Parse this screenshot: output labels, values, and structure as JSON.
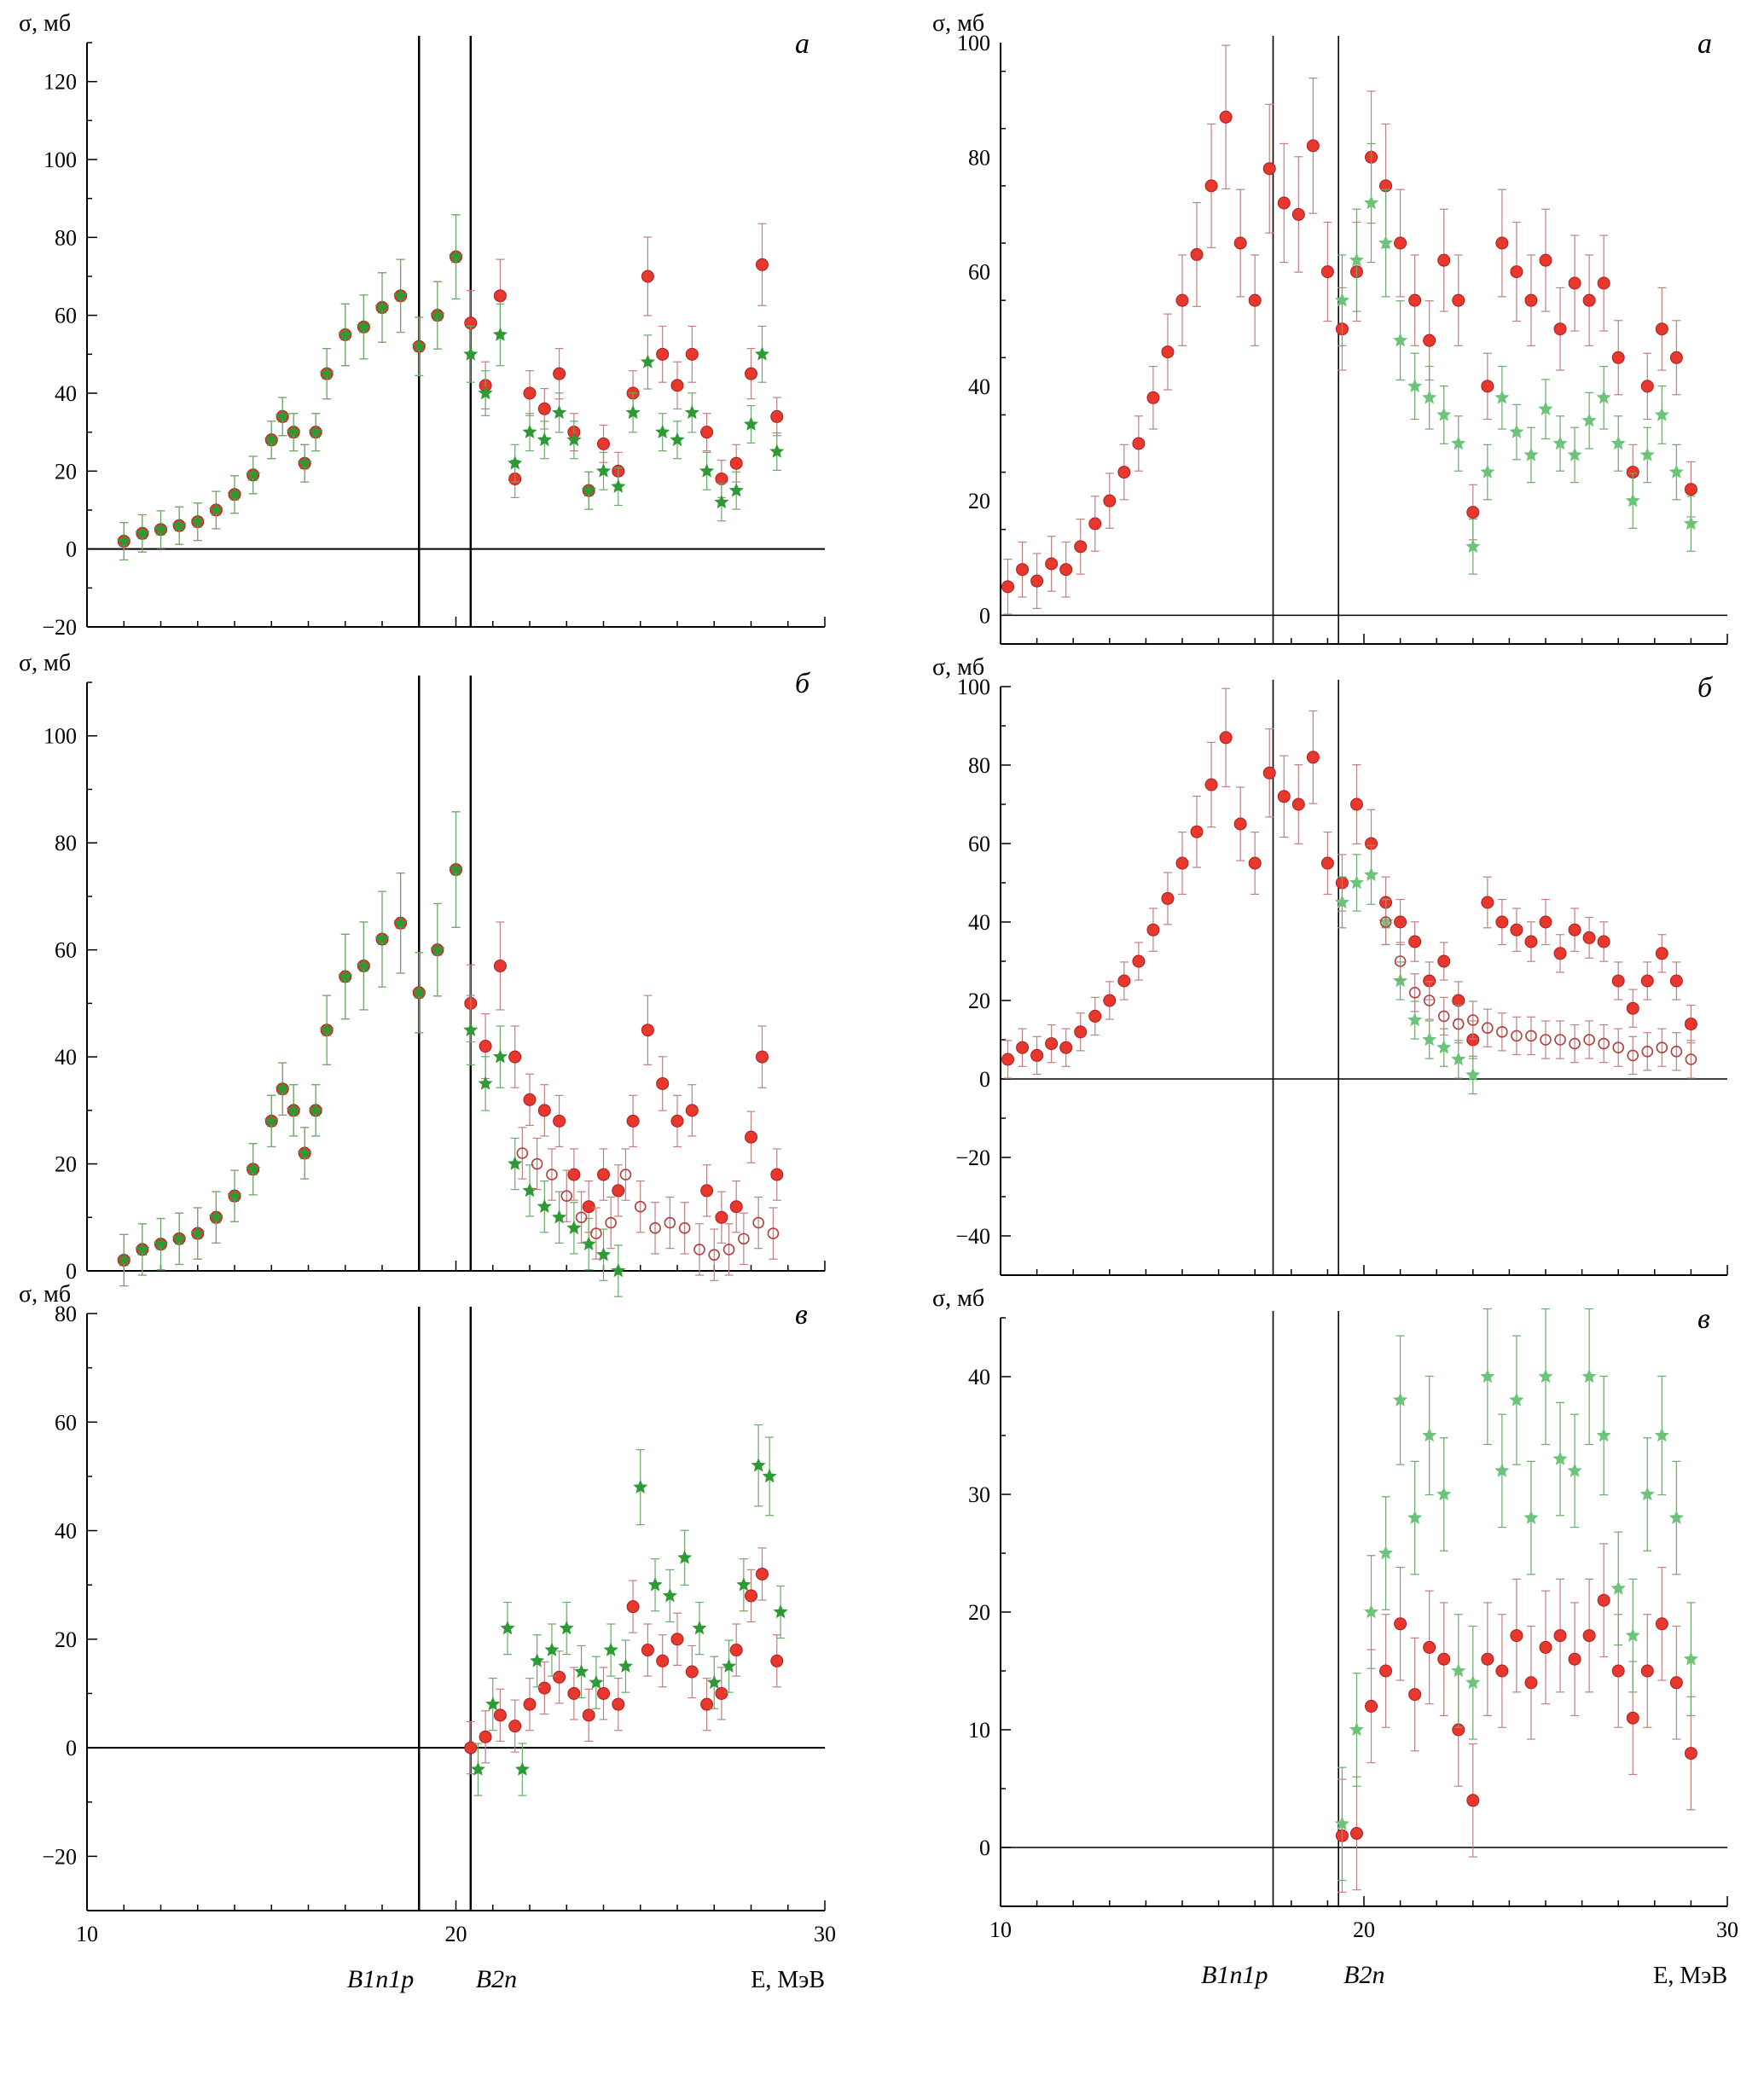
{
  "figure": {
    "xlabel": "E, МэВ",
    "thresholds": [
      {
        "label": "B1n1p",
        "left_E": 19.0,
        "right_E": 17.5
      },
      {
        "label": "B2n",
        "left_E": 20.4,
        "right_E": 19.3
      }
    ]
  },
  "colors": {
    "red": "#e8372c",
    "green": "#2e9a35",
    "light_green": "#6cc47a",
    "open_red": "#b04040",
    "err_red": "#c08080",
    "err_green": "#6aaa6a"
  },
  "chart_data": [
    {
      "id": "left-a",
      "type": "scatter",
      "panel_letter": "а",
      "ylabel": "σ, мб",
      "xlim": [
        10,
        30
      ],
      "ylim": [
        -20,
        130
      ],
      "yticks": [
        -20,
        0,
        20,
        40,
        60,
        80,
        100,
        120
      ],
      "xticks": [
        10,
        20,
        30
      ],
      "show_x_tick_labels": false,
      "series": [
        {
          "marker": "circle",
          "color": "red",
          "x": [
            11,
            11.5,
            12,
            12.5,
            13,
            13.5,
            14,
            14.5,
            15,
            15.3,
            15.6,
            15.9,
            16.2,
            16.5,
            17,
            17.5,
            18,
            18.5,
            19,
            19.5,
            20,
            20.4,
            20.8,
            21.2,
            21.6,
            22,
            22.4,
            22.8,
            23.2,
            23.6,
            24,
            24.4,
            24.8,
            25.2,
            25.6,
            26,
            26.4,
            26.8,
            27.2,
            27.6,
            28,
            28.3,
            28.7
          ],
          "y": [
            2,
            4,
            5,
            6,
            7,
            10,
            14,
            19,
            28,
            34,
            30,
            22,
            30,
            45,
            55,
            57,
            62,
            65,
            52,
            60,
            75,
            58,
            42,
            65,
            18,
            40,
            36,
            45,
            30,
            15,
            27,
            20,
            40,
            70,
            50,
            42,
            50,
            30,
            18,
            22,
            45,
            73,
            34
          ]
        },
        {
          "marker": "star",
          "color": "green",
          "x": [
            11,
            11.5,
            12,
            12.5,
            13,
            13.5,
            14,
            14.5,
            15,
            15.3,
            15.6,
            15.9,
            16.2,
            16.5,
            17,
            17.5,
            18,
            18.5,
            19,
            19.5,
            20,
            20.4,
            20.8,
            21.2,
            21.6,
            22,
            22.4,
            22.8,
            23.2,
            23.6,
            24,
            24.4,
            24.8,
            25.2,
            25.6,
            26,
            26.4,
            26.8,
            27.2,
            27.6,
            28,
            28.3,
            28.7
          ],
          "y": [
            2,
            4,
            5,
            6,
            7,
            10,
            14,
            19,
            28,
            34,
            30,
            22,
            30,
            45,
            55,
            57,
            62,
            65,
            52,
            60,
            75,
            50,
            40,
            55,
            22,
            30,
            28,
            35,
            28,
            15,
            20,
            16,
            35,
            48,
            30,
            28,
            35,
            20,
            12,
            15,
            32,
            50,
            25
          ]
        }
      ]
    },
    {
      "id": "left-b",
      "type": "scatter",
      "panel_letter": "б",
      "ylabel": "σ, мб",
      "xlim": [
        10,
        30
      ],
      "ylim": [
        0,
        110
      ],
      "yticks": [
        0,
        20,
        40,
        60,
        80,
        100
      ],
      "xticks": [
        10,
        20,
        30
      ],
      "show_x_tick_labels": false,
      "series": [
        {
          "marker": "circle",
          "color": "red",
          "x": [
            11,
            11.5,
            12,
            12.5,
            13,
            13.5,
            14,
            14.5,
            15,
            15.3,
            15.6,
            15.9,
            16.2,
            16.5,
            17,
            17.5,
            18,
            18.5,
            19,
            19.5,
            20,
            20.4,
            20.8,
            21.2,
            21.6,
            22,
            22.4,
            22.8,
            23.2,
            23.6,
            24,
            24.4,
            24.8,
            25.2,
            25.6,
            26,
            26.4,
            26.8,
            27.2,
            27.6,
            28,
            28.3,
            28.7
          ],
          "y": [
            2,
            4,
            5,
            6,
            7,
            10,
            14,
            19,
            28,
            34,
            30,
            22,
            30,
            45,
            55,
            57,
            62,
            65,
            52,
            60,
            75,
            50,
            42,
            57,
            40,
            32,
            30,
            28,
            18,
            12,
            18,
            15,
            28,
            45,
            35,
            28,
            30,
            15,
            10,
            12,
            25,
            40,
            18
          ]
        },
        {
          "marker": "star",
          "color": "green",
          "x": [
            11,
            11.5,
            12,
            12.5,
            13,
            13.5,
            14,
            14.5,
            15,
            15.3,
            15.6,
            15.9,
            16.2,
            16.5,
            17,
            17.5,
            18,
            18.5,
            19,
            19.5,
            20,
            20.4,
            20.8,
            21.2,
            21.6,
            22,
            22.4,
            22.8,
            23.2,
            23.6,
            24,
            24.4
          ],
          "y": [
            2,
            4,
            5,
            6,
            7,
            10,
            14,
            19,
            28,
            34,
            30,
            22,
            30,
            45,
            55,
            57,
            62,
            65,
            52,
            60,
            75,
            45,
            35,
            40,
            20,
            15,
            12,
            10,
            8,
            5,
            3,
            0
          ]
        },
        {
          "marker": "open-circle",
          "color": "open_red",
          "x": [
            21.8,
            22.2,
            22.6,
            23,
            23.4,
            23.8,
            24.2,
            24.6,
            25,
            25.4,
            25.8,
            26.2,
            26.6,
            27,
            27.4,
            27.8,
            28.2,
            28.6
          ],
          "y": [
            22,
            20,
            18,
            14,
            10,
            7,
            9,
            18,
            12,
            8,
            9,
            8,
            4,
            3,
            4,
            6,
            9,
            7
          ]
        }
      ]
    },
    {
      "id": "left-c",
      "type": "scatter",
      "panel_letter": "в",
      "ylabel": "σ, мб",
      "xlim": [
        10,
        30
      ],
      "ylim": [
        -30,
        80
      ],
      "yticks": [
        -20,
        0,
        20,
        40,
        60,
        80
      ],
      "xticks": [
        10,
        20,
        30
      ],
      "show_x_tick_labels": true,
      "series": [
        {
          "marker": "circle",
          "color": "red",
          "x": [
            20.4,
            20.8,
            21.2,
            21.6,
            22,
            22.4,
            22.8,
            23.2,
            23.6,
            24,
            24.4,
            24.8,
            25.2,
            25.6,
            26,
            26.4,
            26.8,
            27.2,
            27.6,
            28,
            28.3,
            28.7
          ],
          "y": [
            0,
            2,
            6,
            4,
            8,
            11,
            13,
            10,
            6,
            10,
            8,
            26,
            18,
            16,
            20,
            14,
            8,
            10,
            18,
            28,
            32,
            16
          ]
        },
        {
          "marker": "star",
          "color": "green",
          "x": [
            20.6,
            21,
            21.4,
            21.8,
            22.2,
            22.6,
            23,
            23.4,
            23.8,
            24.2,
            24.6,
            25,
            25.4,
            25.8,
            26.2,
            26.6,
            27,
            27.4,
            27.8,
            28.2,
            28.5,
            28.8
          ],
          "y": [
            -4,
            8,
            22,
            -4,
            16,
            18,
            22,
            14,
            12,
            18,
            15,
            48,
            30,
            28,
            35,
            22,
            12,
            15,
            30,
            52,
            50,
            25
          ]
        }
      ]
    },
    {
      "id": "right-a",
      "type": "scatter",
      "panel_letter": "а",
      "ylabel": "σ, мб",
      "xlim": [
        10,
        30
      ],
      "ylim": [
        -5,
        100
      ],
      "yticks": [
        0,
        20,
        40,
        60,
        80,
        100
      ],
      "xticks": [
        10,
        20,
        30
      ],
      "show_x_tick_labels": false,
      "series": [
        {
          "marker": "circle",
          "color": "red",
          "x": [
            10.2,
            10.6,
            11,
            11.4,
            11.8,
            12.2,
            12.6,
            13,
            13.4,
            13.8,
            14.2,
            14.6,
            15,
            15.4,
            15.8,
            16.2,
            16.6,
            17,
            17.4,
            17.8,
            18.2,
            18.6,
            19,
            19.4,
            19.8,
            20.2,
            20.6,
            21,
            21.4,
            21.8,
            22.2,
            22.6,
            23,
            23.4,
            23.8,
            24.2,
            24.6,
            25,
            25.4,
            25.8,
            26.2,
            26.6,
            27,
            27.4,
            27.8,
            28.2,
            28.6,
            29
          ],
          "y": [
            5,
            8,
            6,
            9,
            8,
            12,
            16,
            20,
            25,
            30,
            38,
            46,
            55,
            63,
            75,
            87,
            65,
            55,
            78,
            72,
            70,
            82,
            60,
            50,
            60,
            80,
            75,
            65,
            55,
            48,
            62,
            55,
            18,
            40,
            65,
            60,
            55,
            62,
            50,
            58,
            55,
            58,
            45,
            25,
            40,
            50,
            45,
            22
          ]
        },
        {
          "marker": "star",
          "color": "light_green",
          "x": [
            19.4,
            19.8,
            20.2,
            20.6,
            21,
            21.4,
            21.8,
            22.2,
            22.6,
            23,
            23.4,
            23.8,
            24.2,
            24.6,
            25,
            25.4,
            25.8,
            26.2,
            26.6,
            27,
            27.4,
            27.8,
            28.2,
            28.6,
            29
          ],
          "y": [
            55,
            62,
            72,
            65,
            48,
            40,
            38,
            35,
            30,
            12,
            25,
            38,
            32,
            28,
            36,
            30,
            28,
            34,
            38,
            30,
            20,
            28,
            35,
            25,
            16
          ]
        }
      ]
    },
    {
      "id": "right-b",
      "type": "scatter",
      "panel_letter": "б",
      "ylabel": "σ, мб",
      "xlim": [
        10,
        30
      ],
      "ylim": [
        -50,
        100
      ],
      "yticks": [
        -40,
        -20,
        0,
        20,
        40,
        60,
        80,
        100
      ],
      "xticks": [
        10,
        20,
        30
      ],
      "show_x_tick_labels": false,
      "series": [
        {
          "marker": "circle",
          "color": "red",
          "x": [
            10.2,
            10.6,
            11,
            11.4,
            11.8,
            12.2,
            12.6,
            13,
            13.4,
            13.8,
            14.2,
            14.6,
            15,
            15.4,
            15.8,
            16.2,
            16.6,
            17,
            17.4,
            17.8,
            18.2,
            18.6,
            19,
            19.4,
            19.8,
            20.2,
            20.6,
            21,
            21.4,
            21.8,
            22.2,
            22.6,
            23,
            23.4,
            23.8,
            24.2,
            24.6,
            25,
            25.4,
            25.8,
            26.2,
            26.6,
            27,
            27.4,
            27.8,
            28.2,
            28.6,
            29
          ],
          "y": [
            5,
            8,
            6,
            9,
            8,
            12,
            16,
            20,
            25,
            30,
            38,
            46,
            55,
            63,
            75,
            87,
            65,
            55,
            78,
            72,
            70,
            82,
            55,
            50,
            70,
            60,
            45,
            40,
            35,
            25,
            30,
            20,
            10,
            45,
            40,
            38,
            35,
            40,
            32,
            38,
            36,
            35,
            25,
            18,
            25,
            32,
            25,
            14
          ]
        },
        {
          "marker": "star",
          "color": "light_green",
          "x": [
            19.4,
            19.8,
            20.2,
            20.6,
            21,
            21.4,
            21.8,
            22.2,
            22.6,
            23
          ],
          "y": [
            45,
            50,
            52,
            40,
            25,
            15,
            10,
            8,
            5,
            1
          ]
        },
        {
          "marker": "open-circle",
          "color": "open_red",
          "x": [
            20.6,
            21,
            21.4,
            21.8,
            22.2,
            22.6,
            23,
            23.4,
            23.8,
            24.2,
            24.6,
            25,
            25.4,
            25.8,
            26.2,
            26.6,
            27,
            27.4,
            27.8,
            28.2,
            28.6,
            29
          ],
          "y": [
            40,
            30,
            22,
            20,
            16,
            14,
            15,
            13,
            12,
            11,
            11,
            10,
            10,
            9,
            10,
            9,
            8,
            6,
            7,
            8,
            7,
            5
          ]
        }
      ]
    },
    {
      "id": "right-c",
      "type": "scatter",
      "panel_letter": "в",
      "ylabel": "σ, мб",
      "xlim": [
        10,
        30
      ],
      "ylim": [
        -5,
        45
      ],
      "yticks": [
        0,
        10,
        20,
        30,
        40
      ],
      "xticks": [
        10,
        20,
        30
      ],
      "show_x_tick_labels": true,
      "series": [
        {
          "marker": "circle",
          "color": "red",
          "x": [
            19.4,
            19.8,
            20.2,
            20.6,
            21,
            21.4,
            21.8,
            22.2,
            22.6,
            23,
            23.4,
            23.8,
            24.2,
            24.6,
            25,
            25.4,
            25.8,
            26.2,
            26.6,
            27,
            27.4,
            27.8,
            28.2,
            28.6,
            29
          ],
          "y": [
            1,
            1.2,
            12,
            15,
            19,
            13,
            17,
            16,
            10,
            4,
            16,
            15,
            18,
            14,
            17,
            18,
            16,
            18,
            21,
            15,
            11,
            15,
            19,
            14,
            8
          ]
        },
        {
          "marker": "star",
          "color": "light_green",
          "x": [
            19.4,
            19.8,
            20.2,
            20.6,
            21,
            21.4,
            21.8,
            22.2,
            22.6,
            23,
            23.4,
            23.8,
            24.2,
            24.6,
            25,
            25.4,
            25.8,
            26.2,
            26.6,
            27,
            27.4,
            27.8,
            28.2,
            28.6,
            29
          ],
          "y": [
            2,
            10,
            20,
            25,
            38,
            28,
            35,
            30,
            15,
            14,
            40,
            32,
            38,
            28,
            40,
            33,
            32,
            40,
            35,
            22,
            18,
            30,
            35,
            28,
            16
          ]
        }
      ]
    }
  ]
}
